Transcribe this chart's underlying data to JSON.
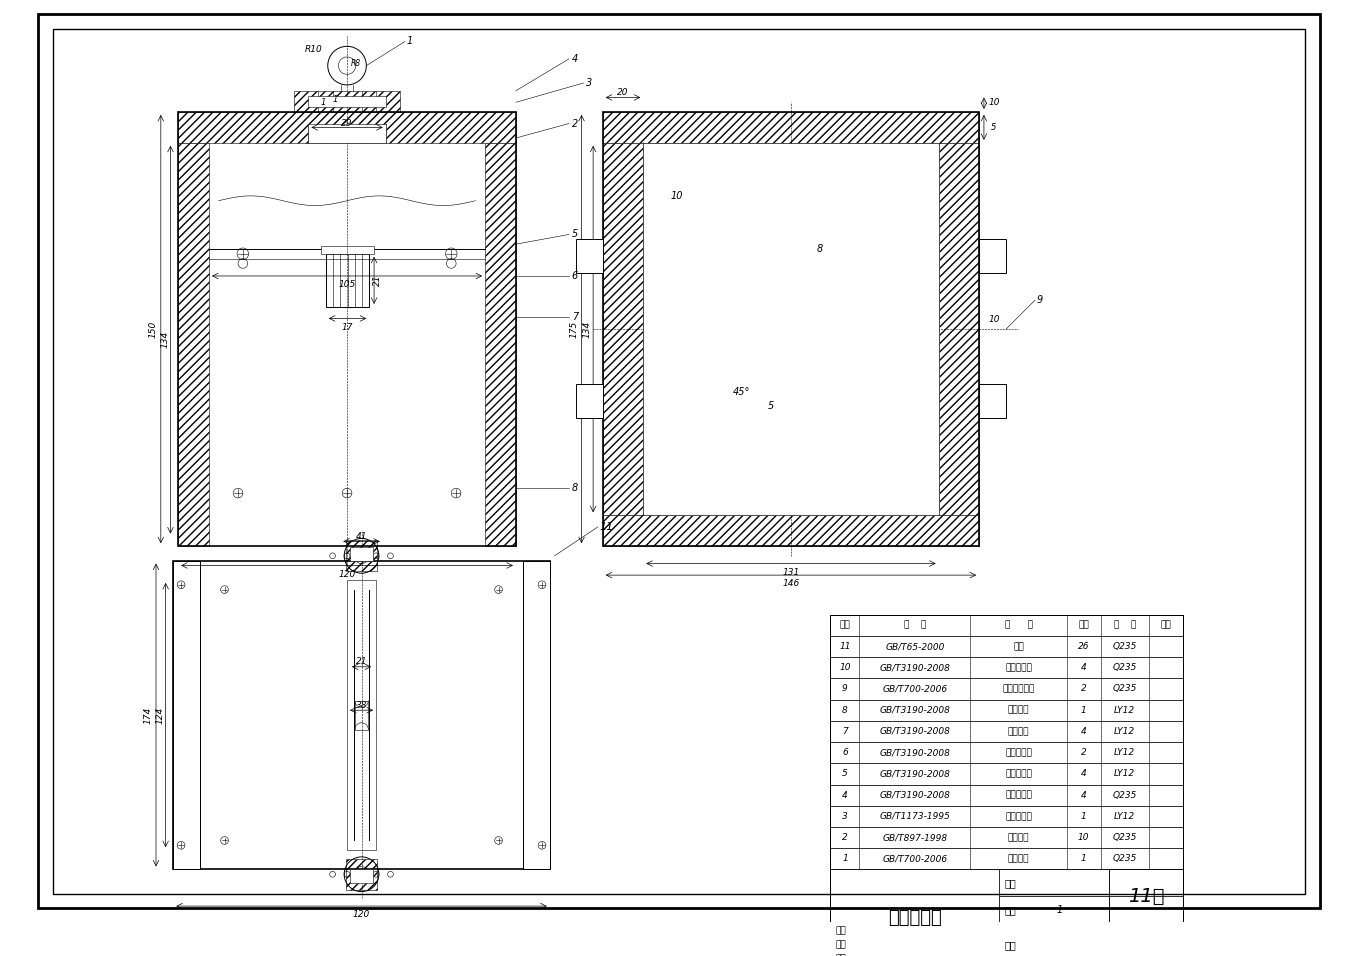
{
  "title": "轿厢装配图",
  "drawing_number": "11号",
  "background_color": "#ffffff",
  "parts_table": {
    "rows": [
      [
        "11",
        "GB/T65-2000",
        "螺钉",
        "26",
        "Q235",
        ""
      ],
      [
        "10",
        "GB/T3190-2008",
        "轿厢下横架",
        "4",
        "Q235",
        ""
      ],
      [
        "9",
        "GB/T700-2006",
        "轿厢导轨辅件",
        "2",
        "Q235",
        ""
      ],
      [
        "8",
        "GB/T3190-2008",
        "轿厢底板",
        "1",
        "LY12",
        ""
      ],
      [
        "7",
        "GB/T3190-2008",
        "轿厢侧板",
        "4",
        "LY12",
        ""
      ],
      [
        "6",
        "GB/T3190-2008",
        "轿厢导轨板",
        "2",
        "LY12",
        ""
      ],
      [
        "5",
        "GB/T3190-2008",
        "轿厢固立柱",
        "4",
        "LY12",
        ""
      ],
      [
        "4",
        "GB/T3190-2008",
        "轿厢上横架",
        "4",
        "Q235",
        ""
      ],
      [
        "3",
        "GB/T1173-1995",
        "轿厢上底板",
        "1",
        "LY12",
        ""
      ],
      [
        "2",
        "GB/T897-1998",
        "双头螺柱",
        "10",
        "Q235",
        ""
      ],
      [
        "1",
        "GB/T700-2006",
        "挂钩部件",
        "1",
        "Q235",
        ""
      ]
    ]
  }
}
